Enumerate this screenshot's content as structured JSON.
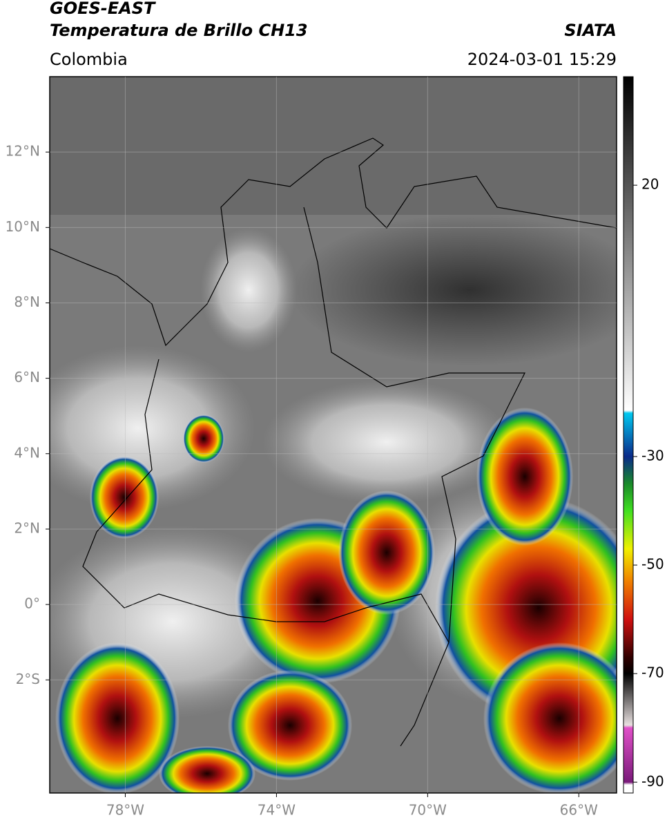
{
  "header": {
    "title": "GOES-EAST",
    "subtitle": "Temperatura de Brillo CH13",
    "source": "SIATA",
    "region": "Colombia",
    "datetime": "2024-03-01 15:29"
  },
  "map": {
    "xlim": [
      -80,
      -65
    ],
    "ylim": [
      -5,
      14
    ],
    "xticks": [
      {
        "value": -78,
        "label": "78°W"
      },
      {
        "value": -74,
        "label": "74°W"
      },
      {
        "value": -70,
        "label": "70°W"
      },
      {
        "value": -66,
        "label": "66°W"
      }
    ],
    "yticks": [
      {
        "value": 12,
        "label": "12°N"
      },
      {
        "value": 10,
        "label": "10°N"
      },
      {
        "value": 8,
        "label": "8°N"
      },
      {
        "value": 6,
        "label": "6°N"
      },
      {
        "value": 4,
        "label": "4°N"
      },
      {
        "value": 2,
        "label": "2°N"
      },
      {
        "value": 0,
        "label": "0°"
      },
      {
        "value": -2,
        "label": "2°S"
      }
    ],
    "grid": true
  },
  "colorbar": {
    "lim": [
      -92,
      40
    ],
    "ticks": [
      20,
      -30,
      -50,
      -70,
      -90
    ],
    "colormap": [
      {
        "value": 40,
        "color": "#000000"
      },
      {
        "value": 20,
        "color": "#555555"
      },
      {
        "value": -21.5,
        "color": "#ffffff"
      },
      {
        "value": -22,
        "color": "#00c8f0"
      },
      {
        "value": -30,
        "color": "#0a2a8a"
      },
      {
        "value": -35,
        "color": "#1a8a2a"
      },
      {
        "value": -40,
        "color": "#40e020"
      },
      {
        "value": -47,
        "color": "#f0f000"
      },
      {
        "value": -53,
        "color": "#f08000"
      },
      {
        "value": -60,
        "color": "#d01010"
      },
      {
        "value": -67,
        "color": "#300000"
      },
      {
        "value": -70,
        "color": "#000000"
      },
      {
        "value": -79.5,
        "color": "#e8e0e0"
      },
      {
        "value": -80,
        "color": "#e050c8"
      },
      {
        "value": -90,
        "color": "#7a1a7a"
      },
      {
        "value": -90.5,
        "color": "#ffffff"
      }
    ]
  }
}
